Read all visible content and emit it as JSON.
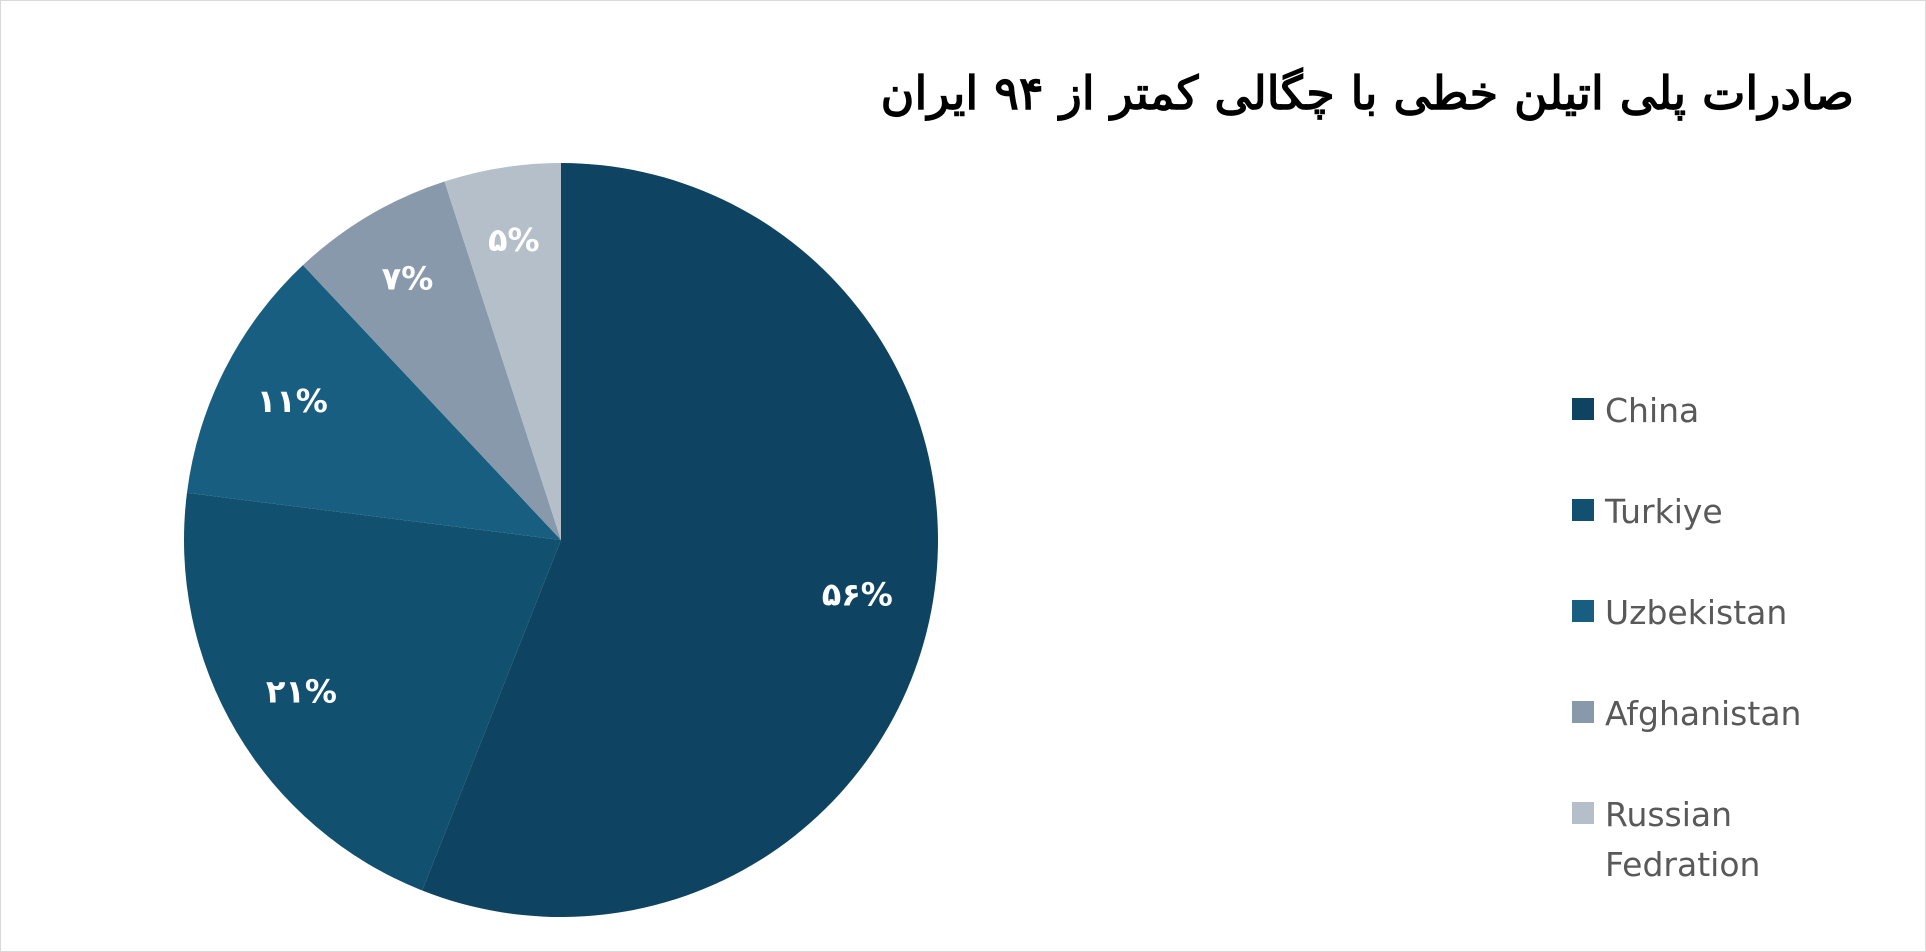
{
  "chart_data": {
    "type": "pie",
    "title": "صادرات پلی اتیلن خطی با چگالی کمتر از ۹۴ ایران",
    "categories": [
      "China",
      "Turkiye",
      "Uzbekistan",
      "Afghanistan",
      "Russian Fedration"
    ],
    "values": [
      56,
      21,
      11,
      7,
      5
    ],
    "value_labels": [
      "۵۶%",
      "۲۱%",
      "۱۱%",
      "۷%",
      "۵%"
    ],
    "colors": [
      "#0e4461",
      "#12506f",
      "#175e80",
      "#8799ab",
      "#b4bfca"
    ],
    "legend": "right"
  }
}
